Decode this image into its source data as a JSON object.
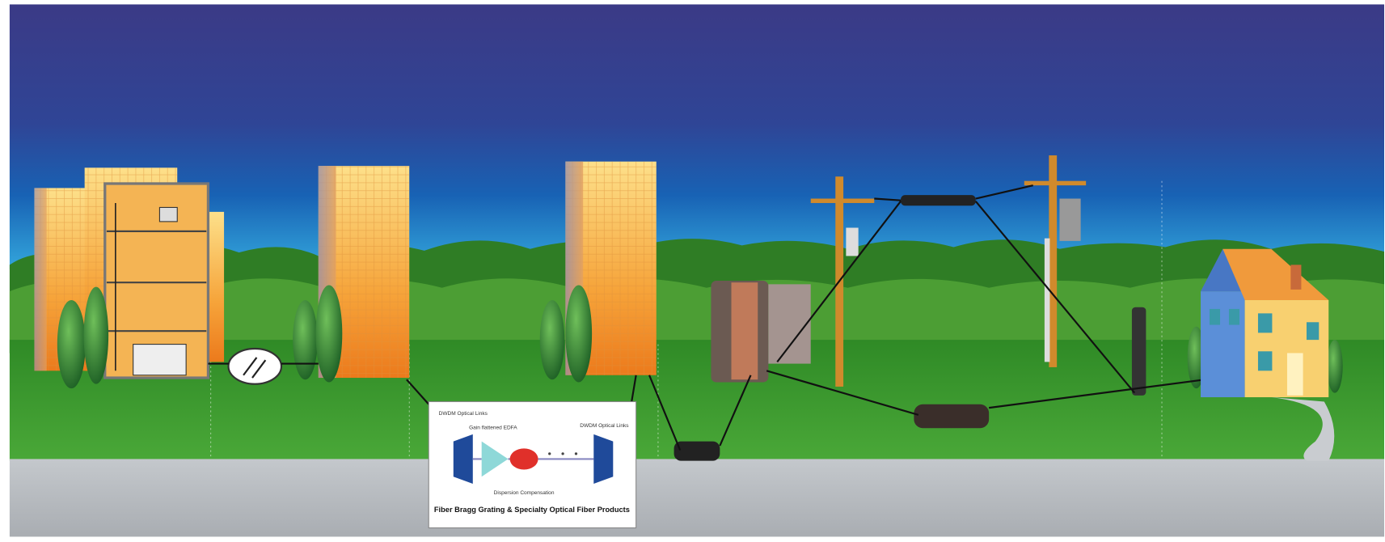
{
  "inset": {
    "labels": [
      "DWDM Optical Links",
      "Gain flattened EDFA",
      "Dispersion Compensation",
      "DWDM Optical Links"
    ],
    "caption": "Fiber Bragg Grating & Specialty Optical Fiber Products"
  }
}
